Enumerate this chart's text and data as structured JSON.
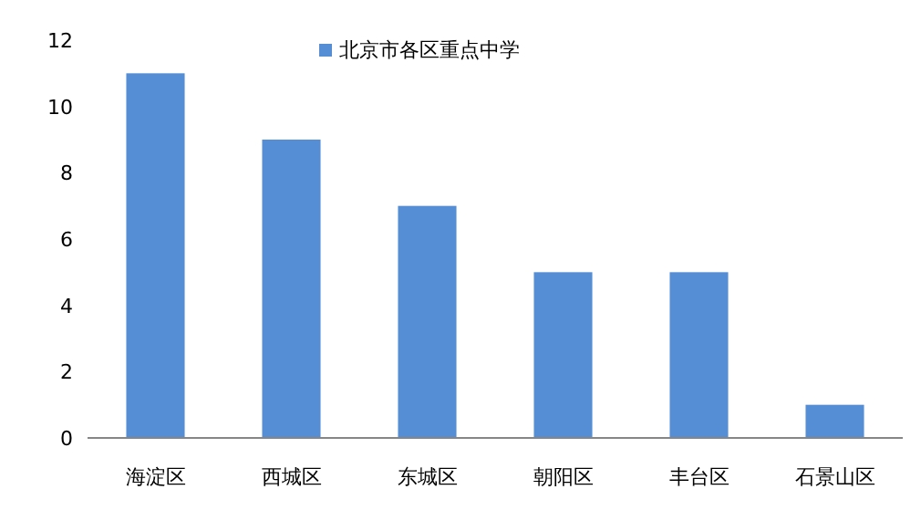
{
  "chart_data": {
    "type": "bar",
    "categories": [
      "海淀区",
      "西城区",
      "东城区",
      "朝阳区",
      "丰台区",
      "石景山区"
    ],
    "series": [
      {
        "name": "北京市各区重点中学",
        "color": "#558ed5",
        "values": [
          11,
          9,
          7,
          5,
          5,
          1
        ]
      }
    ],
    "ylim": [
      0,
      12
    ],
    "yticks": [
      0,
      2,
      4,
      6,
      8,
      10,
      12
    ],
    "grid": false,
    "legend": "top"
  }
}
